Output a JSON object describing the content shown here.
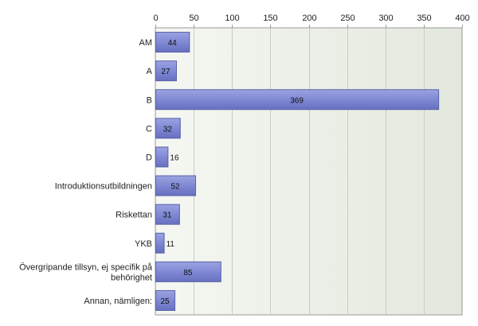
{
  "chart_data": {
    "type": "bar",
    "orientation": "horizontal",
    "title": "",
    "xlabel": "",
    "ylabel": "",
    "xlim": [
      0,
      400
    ],
    "ticks": [
      "0",
      "50",
      "100",
      "150",
      "200",
      "250",
      "300",
      "350",
      "400"
    ],
    "tick_values": [
      0,
      50,
      100,
      150,
      200,
      250,
      300,
      350,
      400
    ],
    "categories": [
      [
        "AM"
      ],
      [
        "A"
      ],
      [
        "B"
      ],
      [
        "C"
      ],
      [
        "D"
      ],
      [
        "Introduktionsutbildningen"
      ],
      [
        "Riskettan"
      ],
      [
        "YKB"
      ],
      [
        "Övergripande tillsyn, ej specifik på",
        "behörighet"
      ],
      [
        "Annan, nämligen:"
      ]
    ],
    "values": [
      44,
      27,
      369,
      32,
      16,
      52,
      31,
      11,
      85,
      25
    ],
    "value_labels": [
      "44",
      "27",
      "369",
      "32",
      "16",
      "52",
      "31",
      "11",
      "85",
      "25"
    ],
    "grid": true,
    "colors": {
      "bar_fill": "#7d86d2",
      "bar_stroke": "#5a62a8",
      "plot_bg_light": "#f5f7f2",
      "plot_bg_dark": "#e3e8dd",
      "grid": "#c8cdc2",
      "axis": "#999999"
    }
  }
}
